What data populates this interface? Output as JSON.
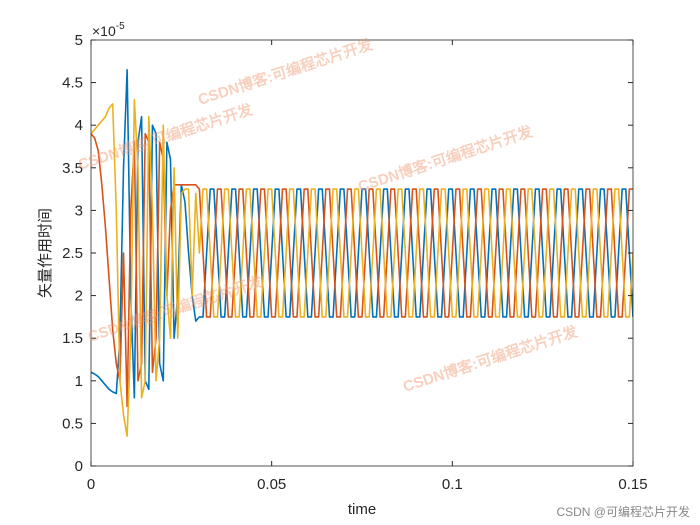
{
  "chart_data": {
    "type": "line",
    "xlabel": "time",
    "ylabel": "矢量作用时间",
    "y_multiplier": "×10",
    "y_exponent": "-5",
    "annotations": [
      "CSDN博客:可编程芯片开发",
      "CSDN博客:可编程芯片开发",
      "CSDN博客:可编程芯片开发",
      "CSDN博客:可编程芯片开发",
      "CSDN博客:可编程芯片开发"
    ],
    "footer": "CSDN @可编程芯片开发",
    "xlim": [
      0,
      0.15
    ],
    "xticks": [
      0,
      0.05,
      0.1,
      0.15
    ],
    "ylim": [
      0,
      5
    ],
    "yticks": [
      0,
      0.5,
      1,
      1.5,
      2,
      2.5,
      3,
      3.5,
      4,
      4.5,
      5
    ],
    "x": [
      0,
      0.001,
      0.002,
      0.003,
      0.004,
      0.005,
      0.006,
      0.007,
      0.008,
      0.009,
      0.01,
      0.011,
      0.012,
      0.013,
      0.014,
      0.015,
      0.016,
      0.017,
      0.018,
      0.019,
      0.02,
      0.021,
      0.022,
      0.023,
      0.024,
      0.025,
      0.026,
      0.027,
      0.028,
      0.029,
      0.03,
      0.031,
      0.032,
      0.033,
      0.034,
      0.035,
      0.036,
      0.037,
      0.038,
      0.039,
      0.04,
      0.041,
      0.042,
      0.043,
      0.044,
      0.045,
      0.046,
      0.047,
      0.048,
      0.049,
      0.05,
      0.051,
      0.052,
      0.053,
      0.054,
      0.055,
      0.056,
      0.057,
      0.058,
      0.059,
      0.06,
      0.061,
      0.062,
      0.063,
      0.064,
      0.065,
      0.066,
      0.067,
      0.068,
      0.069,
      0.07,
      0.071,
      0.072,
      0.073,
      0.074,
      0.075,
      0.076,
      0.077,
      0.078,
      0.079,
      0.08,
      0.081,
      0.082,
      0.083,
      0.084,
      0.085,
      0.086,
      0.087,
      0.088,
      0.089,
      0.09,
      0.091,
      0.092,
      0.093,
      0.094,
      0.095,
      0.096,
      0.097,
      0.098,
      0.099,
      0.1,
      0.101,
      0.102,
      0.103,
      0.104,
      0.105,
      0.106,
      0.107,
      0.108,
      0.109,
      0.11,
      0.111,
      0.112,
      0.113,
      0.114,
      0.115,
      0.116,
      0.117,
      0.118,
      0.119,
      0.12,
      0.121,
      0.122,
      0.123,
      0.124,
      0.125,
      0.126,
      0.127,
      0.128,
      0.129,
      0.13,
      0.131,
      0.132,
      0.133,
      0.134,
      0.135,
      0.136,
      0.137,
      0.138,
      0.139,
      0.14,
      0.141,
      0.142,
      0.143,
      0.144,
      0.145,
      0.146,
      0.147,
      0.148,
      0.149,
      0.15
    ],
    "series": [
      {
        "color": "#0072BD",
        "values": [
          1.1,
          1.08,
          1.05,
          1.0,
          0.95,
          0.9,
          0.87,
          0.85,
          1.5,
          3.5,
          4.65,
          2.0,
          0.8,
          3.8,
          4.1,
          1.0,
          0.9,
          4.0,
          3.9,
          1.2,
          1.0,
          3.8,
          3.6,
          1.5,
          2.0,
          3.3,
          3.1,
          2.5,
          2.0,
          1.7,
          1.75,
          1.75,
          2.5,
          3.25,
          3.25,
          2.5,
          1.75,
          1.75,
          2.5,
          3.25,
          3.25,
          2.5,
          1.75,
          1.75,
          2.5,
          3.25,
          3.25,
          2.5,
          1.75,
          1.75,
          2.5,
          3.25,
          3.25,
          2.5,
          1.75,
          1.75,
          2.5,
          3.25,
          3.25,
          2.5,
          1.75,
          1.75,
          2.5,
          3.25,
          3.25,
          2.5,
          1.75,
          1.75,
          2.5,
          3.25,
          3.25,
          2.5,
          1.75,
          1.75,
          2.5,
          3.25,
          3.25,
          2.5,
          1.75,
          1.75,
          2.5,
          3.25,
          3.25,
          2.5,
          1.75,
          1.75,
          2.5,
          3.25,
          3.25,
          2.5,
          1.75,
          1.75,
          2.5,
          3.25,
          3.25,
          2.5,
          1.75,
          1.75,
          2.5,
          3.25,
          3.25,
          2.5,
          1.75,
          1.75,
          2.5,
          3.25,
          3.25,
          2.5,
          1.75,
          1.75,
          2.5,
          3.25,
          3.25,
          2.5,
          1.75,
          1.75,
          2.5,
          3.25,
          3.25,
          2.5,
          1.75,
          1.75,
          2.5,
          3.25,
          3.25,
          2.5,
          1.75,
          1.75,
          2.5,
          3.25,
          3.25,
          2.5,
          1.75,
          1.75,
          2.5,
          3.25,
          3.25,
          2.5,
          1.75,
          1.75,
          2.5,
          3.25,
          3.25,
          2.5,
          1.75,
          1.75,
          2.5,
          3.25,
          3.25,
          2.5,
          1.75
        ]
      },
      {
        "color": "#D95319",
        "values": [
          3.9,
          3.85,
          3.7,
          3.3,
          2.8,
          2.2,
          1.6,
          1.2,
          1.0,
          2.5,
          0.7,
          3.0,
          3.8,
          1.0,
          1.2,
          3.9,
          3.8,
          1.1,
          1.5,
          3.8,
          3.6,
          2.0,
          3.0,
          3.3,
          3.3,
          3.3,
          3.3,
          3.3,
          3.3,
          3.3,
          3.25,
          2.5,
          1.75,
          1.75,
          2.5,
          3.25,
          3.25,
          2.5,
          1.75,
          1.75,
          2.5,
          3.25,
          3.25,
          2.5,
          1.75,
          1.75,
          2.5,
          3.25,
          3.25,
          2.5,
          1.75,
          1.75,
          2.5,
          3.25,
          3.25,
          2.5,
          1.75,
          1.75,
          2.5,
          3.25,
          3.25,
          2.5,
          1.75,
          1.75,
          2.5,
          3.25,
          3.25,
          2.5,
          1.75,
          1.75,
          2.5,
          3.25,
          3.25,
          2.5,
          1.75,
          1.75,
          2.5,
          3.25,
          3.25,
          2.5,
          1.75,
          1.75,
          2.5,
          3.25,
          3.25,
          2.5,
          1.75,
          1.75,
          2.5,
          3.25,
          3.25,
          2.5,
          1.75,
          1.75,
          2.5,
          3.25,
          3.25,
          2.5,
          1.75,
          1.75,
          2.5,
          3.25,
          3.25,
          2.5,
          1.75,
          1.75,
          2.5,
          3.25,
          3.25,
          2.5,
          1.75,
          1.75,
          2.5,
          3.25,
          3.25,
          2.5,
          1.75,
          1.75,
          2.5,
          3.25,
          3.25,
          2.5,
          1.75,
          1.75,
          2.5,
          3.25,
          3.25,
          2.5,
          1.75,
          1.75,
          2.5,
          3.25,
          3.25,
          2.5,
          1.75,
          1.75,
          2.5,
          3.25,
          3.25,
          2.5,
          1.75,
          1.75,
          2.5,
          3.25,
          3.25,
          2.5,
          1.75,
          1.75,
          2.5,
          3.25,
          3.25
        ]
      },
      {
        "color": "#EDB120",
        "values": [
          3.9,
          3.95,
          4.0,
          4.05,
          4.1,
          4.2,
          4.25,
          3.0,
          1.0,
          0.6,
          0.35,
          1.5,
          4.3,
          3.5,
          0.8,
          1.0,
          4.1,
          3.0,
          1.0,
          1.5,
          4.0,
          2.0,
          1.5,
          3.5,
          1.5,
          3.2,
          3.25,
          3.25,
          2.0,
          3.2,
          2.5,
          3.25,
          3.25,
          2.5,
          1.75,
          1.75,
          2.5,
          3.25,
          3.25,
          2.5,
          1.75,
          1.75,
          2.5,
          3.25,
          3.25,
          2.5,
          1.75,
          1.75,
          2.5,
          3.25,
          3.25,
          2.5,
          1.75,
          1.75,
          2.5,
          3.25,
          3.25,
          2.5,
          1.75,
          1.75,
          2.5,
          3.25,
          3.25,
          2.5,
          1.75,
          1.75,
          2.5,
          3.25,
          3.25,
          2.5,
          1.75,
          1.75,
          2.5,
          3.25,
          3.25,
          2.5,
          1.75,
          1.75,
          2.5,
          3.25,
          3.25,
          2.5,
          1.75,
          1.75,
          2.5,
          3.25,
          3.25,
          2.5,
          1.75,
          1.75,
          2.5,
          3.25,
          3.25,
          2.5,
          1.75,
          1.75,
          2.5,
          3.25,
          3.25,
          2.5,
          1.75,
          1.75,
          2.5,
          3.25,
          3.25,
          2.5,
          1.75,
          1.75,
          2.5,
          3.25,
          3.25,
          2.5,
          1.75,
          1.75,
          2.5,
          3.25,
          3.25,
          2.5,
          1.75,
          1.75,
          2.5,
          3.25,
          3.25,
          2.5,
          1.75,
          1.75,
          2.5,
          3.25,
          3.25,
          2.5,
          1.75,
          1.75,
          2.5,
          3.25,
          3.25,
          2.5,
          1.75,
          1.75,
          2.5,
          3.25,
          3.25,
          2.5,
          1.75,
          1.75,
          2.5,
          3.25,
          3.25,
          2.5,
          1.75,
          1.75,
          2.5
        ]
      }
    ]
  }
}
